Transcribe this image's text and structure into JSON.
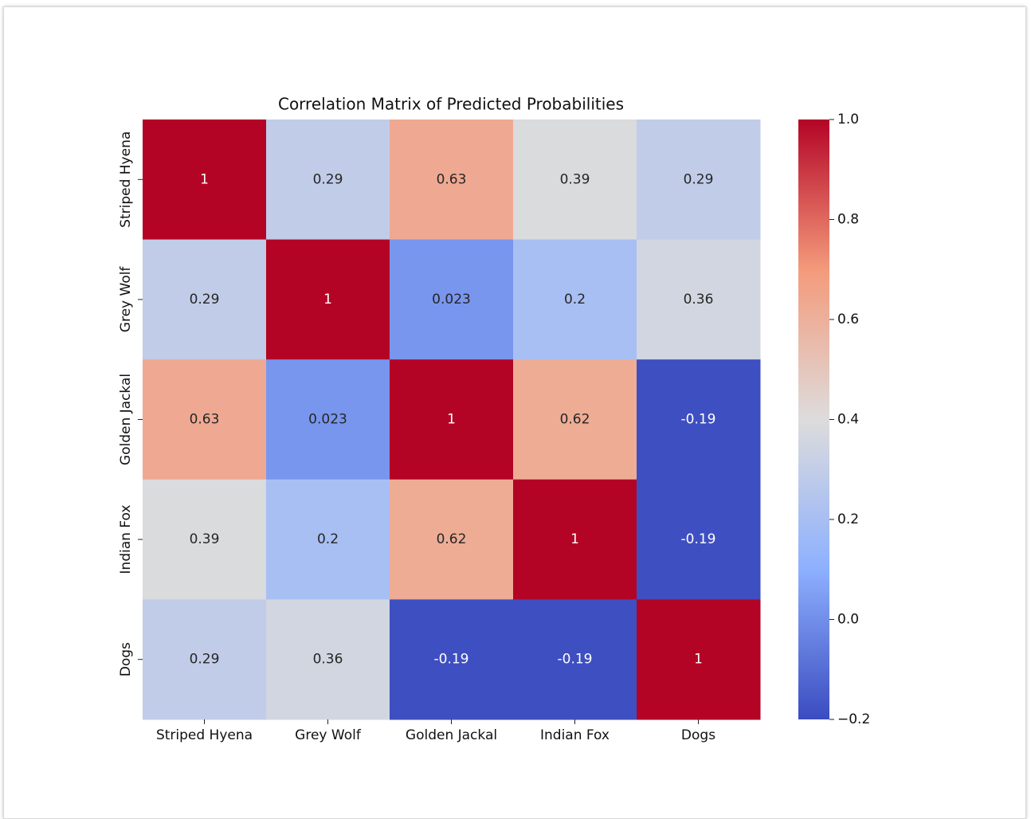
{
  "chart_data": {
    "type": "heatmap",
    "title": "Correlation Matrix of Predicted Probabilities",
    "categories": [
      "Striped Hyena",
      "Grey Wolf",
      "Golden Jackal",
      "Indian Fox",
      "Dogs"
    ],
    "values": [
      [
        1,
        0.29,
        0.63,
        0.39,
        0.29
      ],
      [
        0.29,
        1,
        0.023,
        0.2,
        0.36
      ],
      [
        0.63,
        0.023,
        1,
        0.62,
        -0.19
      ],
      [
        0.39,
        0.2,
        0.62,
        1,
        -0.19
      ],
      [
        0.29,
        0.36,
        -0.19,
        -0.19,
        1
      ]
    ],
    "colormap": [
      "#3b4cc0",
      "#8db0fe",
      "#dddcdc",
      "#f49a7b",
      "#b40426"
    ],
    "clim": [
      -0.2,
      1.0
    ],
    "cticks": [
      {
        "value": 1.0,
        "label": "1.0"
      },
      {
        "value": 0.8,
        "label": "0.8"
      },
      {
        "value": 0.6,
        "label": "0.6"
      },
      {
        "value": 0.4,
        "label": "0.4"
      },
      {
        "value": 0.2,
        "label": "0.2"
      },
      {
        "value": 0.0,
        "label": "0.0"
      },
      {
        "value": -0.2,
        "label": "−0.2"
      }
    ]
  }
}
